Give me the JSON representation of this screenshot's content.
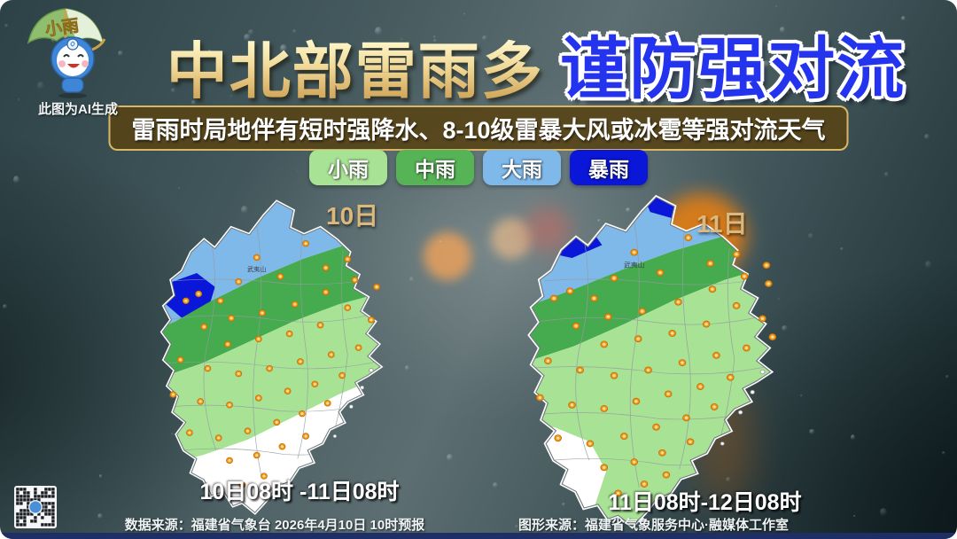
{
  "colors": {
    "light_rain": "#a8e295",
    "mid_rain": "#46aa4f",
    "big_rain": "#7fb9ea",
    "storm": "#0a16d8",
    "subtitle_border": "#d8b868",
    "day_label": "#dcb87c",
    "marker": "#f09a1c",
    "bottom_strip": "#1e2f68",
    "title_gold": "#e8c87e",
    "title_blue": "#2433ee"
  },
  "mascot": {
    "umbrella_label": "小雨",
    "ai_note": "此图为AI生成"
  },
  "header": {
    "title_main": "中北部雷雨多",
    "title_warning": "谨防强对流",
    "subtitle": "雷雨时局地伴有短时强降水、8-10级雷暴大风或冰雹等强对流天气"
  },
  "legend": {
    "items": [
      {
        "label": "小雨",
        "color": "#a8e295"
      },
      {
        "label": "中雨",
        "color": "#56b356"
      },
      {
        "label": "大雨",
        "color": "#7fb9ea"
      },
      {
        "label": "暴雨",
        "color": "#0a16d8"
      }
    ]
  },
  "maps": {
    "left": {
      "day_label": "10日",
      "caption": "10日08时 -11日08时",
      "city_label": "武夷山",
      "markers": [
        [
          150,
          78
        ],
        [
          204,
          62
        ],
        [
          176,
          100
        ],
        [
          130,
          106
        ],
        [
          110,
          128
        ],
        [
          86,
          120
        ],
        [
          226,
          90
        ],
        [
          250,
          80
        ],
        [
          72,
          128
        ],
        [
          92,
          158
        ],
        [
          122,
          148
        ],
        [
          156,
          142
        ],
        [
          192,
          132
        ],
        [
          226,
          118
        ],
        [
          258,
          104
        ],
        [
          282,
          112
        ],
        [
          250,
          136
        ],
        [
          276,
          150
        ],
        [
          220,
          156
        ],
        [
          186,
          166
        ],
        [
          152,
          172
        ],
        [
          118,
          178
        ],
        [
          66,
          196
        ],
        [
          96,
          206
        ],
        [
          130,
          212
        ],
        [
          164,
          206
        ],
        [
          198,
          198
        ],
        [
          232,
          190
        ],
        [
          262,
          182
        ],
        [
          58,
          236
        ],
        [
          88,
          244
        ],
        [
          120,
          248
        ],
        [
          152,
          240
        ],
        [
          184,
          232
        ],
        [
          214,
          224
        ],
        [
          244,
          214
        ],
        [
          76,
          280
        ],
        [
          108,
          286
        ],
        [
          140,
          278
        ],
        [
          172,
          268
        ],
        [
          200,
          258
        ],
        [
          228,
          246
        ],
        [
          120,
          312
        ],
        [
          150,
          306
        ],
        [
          178,
          296
        ],
        [
          204,
          284
        ],
        [
          134,
          340
        ],
        [
          158,
          330
        ]
      ]
    },
    "right": {
      "day_label": "11日",
      "caption": "11日08时-12日08时",
      "city_label": "武夷山",
      "markers": [
        [
          150,
          74
        ],
        [
          204,
          58
        ],
        [
          176,
          96
        ],
        [
          130,
          102
        ],
        [
          110,
          124
        ],
        [
          86,
          116
        ],
        [
          226,
          86
        ],
        [
          252,
          76
        ],
        [
          282,
          88
        ],
        [
          70,
          124
        ],
        [
          92,
          154
        ],
        [
          124,
          144
        ],
        [
          158,
          138
        ],
        [
          194,
          128
        ],
        [
          228,
          114
        ],
        [
          260,
          100
        ],
        [
          284,
          108
        ],
        [
          252,
          132
        ],
        [
          278,
          146
        ],
        [
          222,
          152
        ],
        [
          188,
          162
        ],
        [
          154,
          168
        ],
        [
          120,
          174
        ],
        [
          64,
          192
        ],
        [
          96,
          202
        ],
        [
          130,
          208
        ],
        [
          164,
          202
        ],
        [
          198,
          194
        ],
        [
          232,
          186
        ],
        [
          262,
          178
        ],
        [
          288,
          166
        ],
        [
          56,
          232
        ],
        [
          88,
          240
        ],
        [
          120,
          244
        ],
        [
          152,
          236
        ],
        [
          184,
          228
        ],
        [
          216,
          220
        ],
        [
          246,
          210
        ],
        [
          74,
          276
        ],
        [
          106,
          282
        ],
        [
          140,
          274
        ],
        [
          172,
          264
        ],
        [
          202,
          254
        ],
        [
          230,
          242
        ],
        [
          120,
          308
        ],
        [
          150,
          302
        ],
        [
          178,
          292
        ],
        [
          206,
          280
        ],
        [
          134,
          336
        ],
        [
          160,
          326
        ],
        [
          182,
          316
        ]
      ]
    }
  },
  "footer": {
    "data_source": "数据来源：福建省气象台 2026年4月10日 10时预报",
    "graphic_source": "图形来源：福建省气象服务中心·融媒体工作室"
  }
}
